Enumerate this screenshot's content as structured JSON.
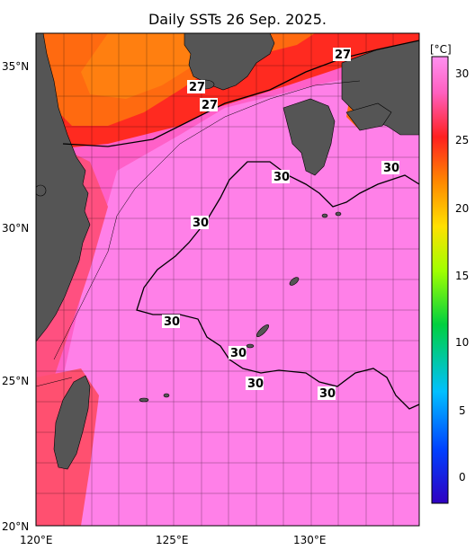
{
  "title": "Daily SSTs 26 Sep. 2025.",
  "map": {
    "lon_labels": [
      "120°E",
      "125°E",
      "130°E"
    ],
    "lat_labels": [
      "35°N",
      "30°N",
      "25°N",
      "20°N"
    ],
    "contour_labels": [
      "27",
      "27",
      "27",
      "30",
      "30",
      "30",
      "30",
      "30",
      "30",
      "30"
    ]
  },
  "colorbar": {
    "unit": "[°C]",
    "ticks": [
      "30",
      "25",
      "20",
      "15",
      "10",
      "5",
      "0"
    ],
    "colors": [
      "#ff8cf0",
      "#ff2020",
      "#ff8800",
      "#ffe000",
      "#a0ff00",
      "#00d040",
      "#00c0ff",
      "#0040ff",
      "#3000c0"
    ]
  },
  "colors": {
    "land": "#555555",
    "warm_sea": "#ff80e8",
    "cool_sea": "#ff3030"
  }
}
